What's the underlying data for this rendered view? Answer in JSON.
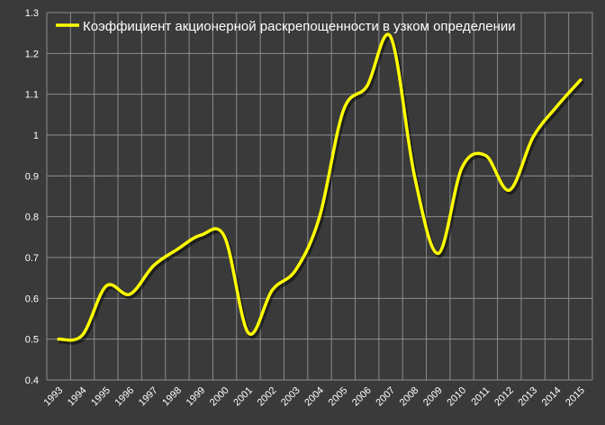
{
  "chart_data": {
    "type": "line",
    "title": "",
    "xlabel": "",
    "ylabel": "",
    "x": [
      "1993",
      "1994",
      "1995",
      "1996",
      "1997",
      "1998",
      "1999",
      "2000",
      "2001",
      "2002",
      "2003",
      "2004",
      "2005",
      "2006",
      "2007",
      "2008",
      "2009",
      "2010",
      "2011",
      "2012",
      "2013",
      "2014",
      "2015"
    ],
    "series": [
      {
        "name": "Коэффициент акционерной раскрепощенности в узком определении",
        "color": "#ffff00",
        "values": [
          0.5,
          0.51,
          0.63,
          0.61,
          0.68,
          0.72,
          0.755,
          0.75,
          0.515,
          0.62,
          0.67,
          0.8,
          1.06,
          1.12,
          1.24,
          0.9,
          0.71,
          0.92,
          0.95,
          0.865,
          0.995,
          1.07,
          1.135
        ]
      }
    ],
    "y_ticks": [
      "0.4",
      "0.5",
      "0.6",
      "0.7",
      "0.8",
      "0.9",
      "1",
      "1.1",
      "1.2",
      "1.3"
    ],
    "ylim": [
      0.4,
      1.3
    ],
    "grid": true,
    "legend_position": "top-left",
    "colors": {
      "background": "#3a3a3a",
      "grid": "#8c8c8c",
      "text": "#ffffff",
      "line": "#ffff00"
    }
  }
}
